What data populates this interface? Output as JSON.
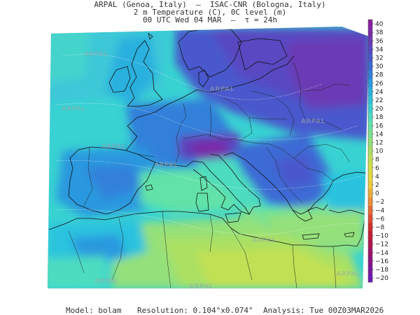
{
  "header": {
    "line1": "ARPAL (Genoa, Italy)  —  ISAC-CNR (Bologna, Italy)",
    "line2": "2 m Temperature (C), 0C level (m)",
    "line3": "00 UTC Wed 04 MAR  —  τ = 24h"
  },
  "watermark": "ARPAL",
  "colorbar": {
    "labels": [
      "40",
      "38",
      "36",
      "34",
      "32",
      "30",
      "28",
      "26",
      "24",
      "22",
      "20",
      "18",
      "16",
      "14",
      "12",
      "10",
      "8",
      "6",
      "4",
      "2",
      "0",
      "−2",
      "−4",
      "−6",
      "−8",
      "−10",
      "−12",
      "−14",
      "−16",
      "−18",
      "−20"
    ],
    "colors": [
      "#8a1fa0",
      "#7a2aa8",
      "#6a3ab4",
      "#5848c2",
      "#4a58cc",
      "#3d6ad4",
      "#3180da",
      "#2a98de",
      "#28aee0",
      "#2cc2de",
      "#38d2d2",
      "#4edcc0",
      "#62e2a8",
      "#7ae292",
      "#94e07a",
      "#abe064",
      "#c2e052",
      "#d6e044",
      "#e6da3e",
      "#eec83c",
      "#f0ae3a",
      "#ee8e38",
      "#e86a34",
      "#e04a30",
      "#d42c2c",
      "#c41c38",
      "#b01450",
      "#9c1268",
      "#8a1282",
      "#7a149c",
      "#6a18b4"
    ]
  },
  "footer": {
    "model_label": "Model:",
    "model": "bolam",
    "resolution_label": "Resolution:",
    "resolution": "0.104°x0.074°",
    "analysis_label": "Analysis:",
    "analysis": "Tue 00Z03MAR2026"
  }
}
